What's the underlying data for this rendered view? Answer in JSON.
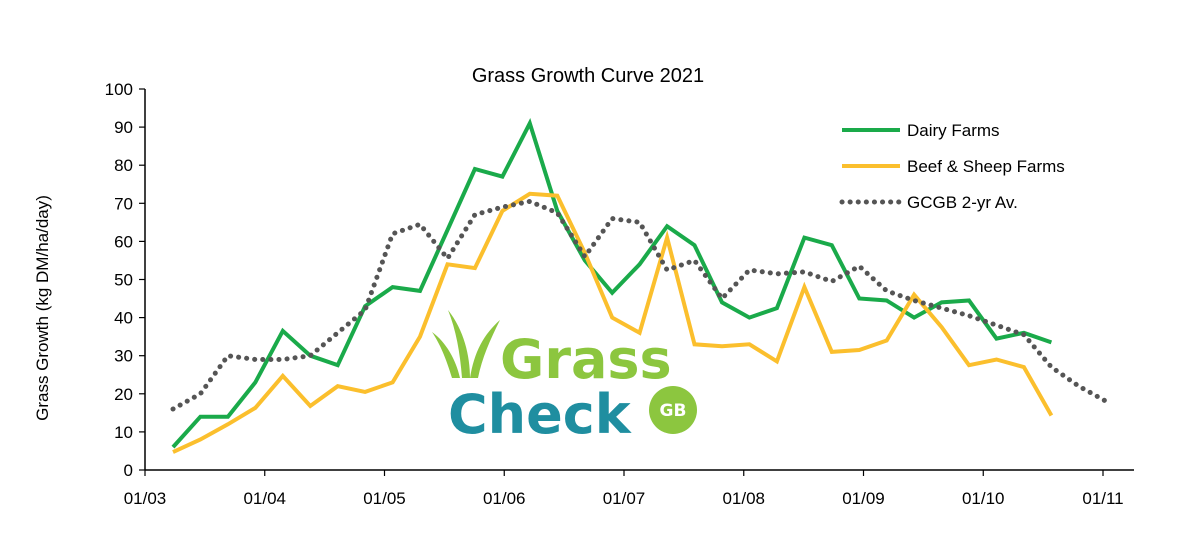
{
  "chart_data": {
    "type": "line",
    "title": "Grass Growth Curve 2021",
    "xlabel": "",
    "ylabel": "Grass Growth (kg DM/ha/day)",
    "ylim": [
      0,
      100
    ],
    "yticks": [
      0,
      10,
      20,
      30,
      40,
      50,
      60,
      70,
      80,
      90,
      100
    ],
    "xticks": [
      "01/03",
      "01/04",
      "01/05",
      "01/06",
      "01/07",
      "01/08",
      "01/09",
      "01/10",
      "01/11"
    ],
    "grid": false,
    "legend_position": "upper right",
    "x_interval": "weekly (approx. 7 days), first point ~08/03",
    "series": [
      {
        "name": "Dairy Farms",
        "color": "#1aaa4a",
        "style": "solid",
        "values": [
          6,
          14,
          14,
          23,
          36.5,
          30,
          27.5,
          43,
          48,
          47,
          63,
          79,
          77,
          91,
          68,
          55,
          46.5,
          54,
          64,
          59,
          44,
          40,
          42.5,
          61,
          59,
          45,
          44.5,
          40,
          44,
          44.5,
          34.5,
          36,
          33.5
        ]
      },
      {
        "name": "Beef & Sheep Farms",
        "color": "#fbbf2d",
        "style": "solid",
        "values": [
          4.7,
          8,
          12,
          16.3,
          24.7,
          16.8,
          22,
          20.5,
          23,
          35,
          54,
          53,
          68,
          72.5,
          72,
          57,
          40,
          36,
          61,
          33,
          32.5,
          33,
          28.5,
          48,
          31,
          31.5,
          34,
          46,
          37.5,
          27.5,
          29,
          27,
          14.3
        ]
      },
      {
        "name": "GCGB 2-yr Av.",
        "color": "#555555",
        "style": "dotted",
        "values": [
          16,
          20,
          30,
          29,
          29,
          30,
          36,
          42,
          62,
          64.5,
          55.5,
          67,
          69,
          70.5,
          67.5,
          56,
          66,
          65,
          52.5,
          55,
          45,
          52.5,
          51.5,
          52,
          49.5,
          53.5,
          47,
          44.5,
          42.5,
          40.5,
          38,
          35.5,
          27,
          22,
          18
        ]
      }
    ]
  },
  "logo": {
    "line1": "Grass",
    "line2": "Check",
    "badge": "GB"
  }
}
